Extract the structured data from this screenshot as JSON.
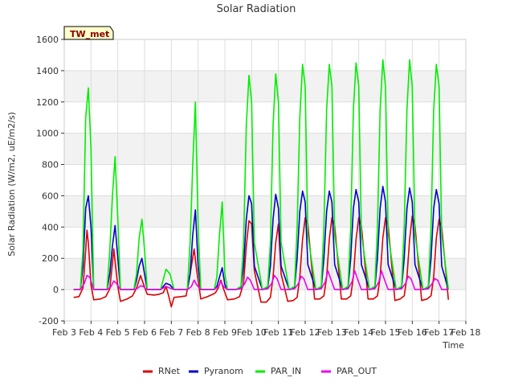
{
  "chart_data": {
    "type": "line",
    "title": "Solar Radiation",
    "xlabel": "Time",
    "ylabel": "Solar Radiation (W/m2, uE/m2/s)",
    "badge": "TW_met",
    "ylim": [
      -200,
      1600
    ],
    "xlim": [
      3,
      18
    ],
    "yticks": [
      -200,
      0,
      200,
      400,
      600,
      800,
      1000,
      1200,
      1400,
      1600
    ],
    "xticks": [
      {
        "v": 3,
        "label": "Feb 3"
      },
      {
        "v": 4,
        "label": "Feb 4"
      },
      {
        "v": 5,
        "label": "Feb 5"
      },
      {
        "v": 6,
        "label": "Feb 6"
      },
      {
        "v": 7,
        "label": "Feb 7"
      },
      {
        "v": 8,
        "label": "Feb 8"
      },
      {
        "v": 9,
        "label": "Feb 9"
      },
      {
        "v": 10,
        "label": "Feb 10"
      },
      {
        "v": 11,
        "label": "Feb 11"
      },
      {
        "v": 12,
        "label": "Feb 12"
      },
      {
        "v": 13,
        "label": "Feb 13"
      },
      {
        "v": 14,
        "label": "Feb 14"
      },
      {
        "v": 15,
        "label": "Feb 15"
      },
      {
        "v": 16,
        "label": "Feb 16"
      },
      {
        "v": 17,
        "label": "Feb 17"
      },
      {
        "v": 18,
        "label": "Feb 18"
      }
    ],
    "grid": true,
    "legend_position": "bottom",
    "days": [
      3.85,
      4.85,
      5.85,
      6.85,
      7.85,
      8.85,
      9.85,
      10.85,
      11.85,
      12.85,
      13.85,
      14.85,
      15.85,
      16.85
    ],
    "series": [
      {
        "name": "RNet",
        "color": "#dd0000",
        "x": [
          3.35,
          3.55,
          3.7,
          3.8,
          3.85,
          3.9,
          4.0,
          4.1,
          4.35,
          4.55,
          4.7,
          4.8,
          4.85,
          4.9,
          5.0,
          5.1,
          5.35,
          5.55,
          5.7,
          5.85,
          5.95,
          6.1,
          6.35,
          6.55,
          6.7,
          6.8,
          6.9,
          7.0,
          7.1,
          7.35,
          7.55,
          7.65,
          7.75,
          7.85,
          7.95,
          8.1,
          8.35,
          8.55,
          8.65,
          8.75,
          8.85,
          8.95,
          9.1,
          9.35,
          9.55,
          9.7,
          9.8,
          9.9,
          10.0,
          10.1,
          10.35,
          10.55,
          10.7,
          10.8,
          10.9,
          11.0,
          11.1,
          11.35,
          11.55,
          11.7,
          11.8,
          11.9,
          12.0,
          12.1,
          12.35,
          12.55,
          12.7,
          12.8,
          12.9,
          13.0,
          13.1,
          13.35,
          13.55,
          13.7,
          13.8,
          13.9,
          14.0,
          14.1,
          14.35,
          14.55,
          14.7,
          14.8,
          14.9,
          15.0,
          15.1,
          15.35,
          15.55,
          15.7,
          15.8,
          15.9,
          16.0,
          16.1,
          16.35,
          16.55,
          16.7,
          16.8,
          16.9,
          17.0,
          17.1,
          17.35
        ],
        "y": [
          -50,
          -45,
          10,
          250,
          380,
          300,
          30,
          -65,
          -60,
          -45,
          5,
          170,
          260,
          180,
          20,
          -75,
          -60,
          -40,
          10,
          90,
          40,
          -30,
          -35,
          -30,
          -20,
          20,
          -40,
          -110,
          -50,
          -45,
          -40,
          50,
          150,
          260,
          120,
          -60,
          -45,
          -30,
          -20,
          10,
          60,
          5,
          -65,
          -60,
          -45,
          40,
          280,
          440,
          420,
          120,
          -80,
          -80,
          -50,
          80,
          300,
          420,
          100,
          -75,
          -70,
          -50,
          80,
          320,
          460,
          420,
          -60,
          -60,
          -40,
          80,
          320,
          460,
          410,
          -60,
          -60,
          -40,
          80,
          320,
          460,
          410,
          -60,
          -60,
          -40,
          80,
          330,
          460,
          410,
          -70,
          -60,
          -40,
          80,
          320,
          470,
          410,
          -70,
          -60,
          -40,
          80,
          330,
          450,
          400,
          -65
        ]
      },
      {
        "name": "Pyranom",
        "color": "#0000cc",
        "x": [
          3.35,
          3.6,
          3.7,
          3.8,
          3.9,
          4.0,
          4.1,
          4.35,
          4.6,
          4.7,
          4.8,
          4.9,
          5.0,
          5.1,
          5.35,
          5.6,
          5.7,
          5.8,
          5.9,
          6.0,
          6.1,
          6.4,
          6.6,
          6.8,
          6.95,
          7.1,
          7.4,
          7.6,
          7.7,
          7.8,
          7.9,
          8.0,
          8.1,
          8.4,
          8.6,
          8.7,
          8.8,
          8.9,
          9.0,
          9.1,
          9.4,
          9.6,
          9.7,
          9.8,
          9.9,
          10.0,
          10.1,
          10.4,
          10.6,
          10.7,
          10.8,
          10.9,
          11.0,
          11.1,
          11.4,
          11.6,
          11.7,
          11.8,
          11.9,
          12.0,
          12.1,
          12.4,
          12.6,
          12.7,
          12.8,
          12.9,
          13.0,
          13.1,
          13.4,
          13.6,
          13.7,
          13.8,
          13.9,
          14.0,
          14.1,
          14.4,
          14.6,
          14.7,
          14.8,
          14.9,
          15.0,
          15.1,
          15.4,
          15.6,
          15.7,
          15.8,
          15.9,
          16.0,
          16.1,
          16.4,
          16.6,
          16.7,
          16.8,
          16.9,
          17.0,
          17.1,
          17.35
        ],
        "y": [
          0,
          0,
          150,
          520,
          600,
          400,
          0,
          0,
          0,
          100,
          280,
          410,
          200,
          0,
          0,
          0,
          60,
          150,
          200,
          100,
          0,
          0,
          0,
          40,
          30,
          0,
          0,
          0,
          100,
          350,
          510,
          150,
          0,
          0,
          0,
          20,
          80,
          140,
          30,
          0,
          0,
          10,
          150,
          450,
          600,
          550,
          150,
          0,
          10,
          150,
          450,
          610,
          520,
          150,
          0,
          10,
          200,
          500,
          630,
          560,
          160,
          0,
          10,
          200,
          500,
          630,
          560,
          160,
          0,
          10,
          200,
          520,
          640,
          560,
          160,
          0,
          10,
          200,
          520,
          660,
          560,
          160,
          0,
          10,
          200,
          520,
          650,
          560,
          160,
          0,
          10,
          200,
          520,
          640,
          550,
          150,
          0
        ]
      },
      {
        "name": "PAR_IN",
        "color": "#00ee00",
        "x": [
          3.35,
          3.6,
          3.7,
          3.8,
          3.9,
          4.0,
          4.1,
          4.35,
          4.6,
          4.7,
          4.8,
          4.9,
          5.0,
          5.1,
          5.35,
          5.6,
          5.7,
          5.8,
          5.9,
          6.0,
          6.1,
          6.4,
          6.6,
          6.8,
          6.95,
          7.1,
          7.4,
          7.6,
          7.7,
          7.8,
          7.9,
          8.0,
          8.1,
          8.4,
          8.6,
          8.7,
          8.8,
          8.9,
          9.0,
          9.1,
          9.4,
          9.6,
          9.7,
          9.8,
          9.9,
          10.0,
          10.1,
          10.4,
          10.6,
          10.7,
          10.8,
          10.9,
          11.0,
          11.1,
          11.4,
          11.6,
          11.7,
          11.8,
          11.9,
          12.0,
          12.1,
          12.4,
          12.6,
          12.7,
          12.8,
          12.9,
          13.0,
          13.1,
          13.4,
          13.6,
          13.7,
          13.8,
          13.9,
          14.0,
          14.1,
          14.4,
          14.6,
          14.7,
          14.8,
          14.9,
          15.0,
          15.1,
          15.4,
          15.6,
          15.7,
          15.8,
          15.9,
          16.0,
          16.1,
          16.4,
          16.6,
          16.7,
          16.8,
          16.9,
          17.0,
          17.1,
          17.35
        ],
        "y": [
          0,
          0,
          250,
          1100,
          1290,
          900,
          0,
          0,
          0,
          250,
          600,
          850,
          450,
          0,
          0,
          0,
          100,
          330,
          450,
          250,
          0,
          0,
          0,
          130,
          100,
          0,
          0,
          0,
          300,
          800,
          1200,
          400,
          0,
          0,
          0,
          80,
          350,
          560,
          100,
          0,
          0,
          20,
          300,
          1050,
          1370,
          1200,
          300,
          0,
          20,
          300,
          1050,
          1380,
          1200,
          300,
          0,
          20,
          400,
          1100,
          1440,
          1300,
          350,
          0,
          20,
          400,
          1150,
          1440,
          1300,
          350,
          0,
          20,
          400,
          1150,
          1450,
          1300,
          350,
          0,
          20,
          400,
          1150,
          1470,
          1300,
          350,
          0,
          20,
          400,
          1150,
          1470,
          1300,
          350,
          0,
          20,
          400,
          1150,
          1440,
          1300,
          350,
          0
        ]
      },
      {
        "name": "PAR_OUT",
        "color": "#ee00ee",
        "x": [
          3.35,
          3.6,
          3.75,
          3.85,
          3.95,
          4.1,
          4.35,
          4.6,
          4.75,
          4.85,
          4.95,
          5.1,
          5.35,
          5.6,
          5.75,
          5.85,
          5.95,
          6.1,
          6.4,
          6.6,
          6.8,
          6.95,
          7.1,
          7.4,
          7.6,
          7.75,
          7.85,
          7.95,
          8.1,
          8.4,
          8.6,
          8.75,
          8.85,
          8.95,
          9.1,
          9.4,
          9.6,
          9.75,
          9.85,
          9.95,
          10.1,
          10.4,
          10.6,
          10.75,
          10.85,
          10.95,
          11.1,
          11.4,
          11.6,
          11.75,
          11.85,
          11.95,
          12.1,
          12.4,
          12.6,
          12.75,
          12.85,
          12.95,
          13.1,
          13.4,
          13.6,
          13.75,
          13.85,
          13.95,
          14.1,
          14.4,
          14.6,
          14.75,
          14.85,
          14.95,
          15.1,
          15.4,
          15.6,
          15.75,
          15.85,
          15.95,
          16.1,
          16.4,
          16.6,
          16.75,
          16.85,
          16.95,
          17.1,
          17.35
        ],
        "y": [
          0,
          0,
          40,
          90,
          80,
          0,
          0,
          0,
          20,
          55,
          40,
          0,
          0,
          0,
          10,
          25,
          20,
          0,
          0,
          0,
          20,
          10,
          0,
          0,
          0,
          20,
          60,
          30,
          0,
          0,
          0,
          20,
          50,
          20,
          0,
          0,
          5,
          40,
          80,
          60,
          0,
          0,
          5,
          40,
          90,
          70,
          0,
          0,
          5,
          40,
          85,
          70,
          0,
          0,
          5,
          50,
          120,
          70,
          0,
          0,
          5,
          50,
          120,
          70,
          0,
          0,
          5,
          50,
          120,
          70,
          0,
          0,
          5,
          40,
          85,
          70,
          0,
          0,
          5,
          40,
          70,
          60,
          0,
          0
        ]
      }
    ]
  }
}
